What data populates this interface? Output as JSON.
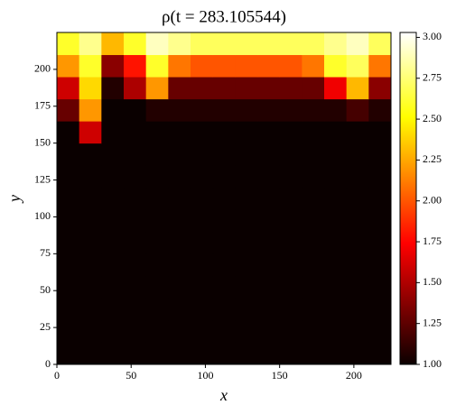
{
  "chart_data": {
    "type": "heatmap",
    "title": "ρ(t = 283.105544)",
    "x_label": "x",
    "y_label": "y",
    "colormap": "hot",
    "xlim": [
      0,
      225
    ],
    "ylim": [
      0,
      225
    ],
    "xticks": [
      0,
      50,
      100,
      150,
      200
    ],
    "yticks": [
      0,
      25,
      50,
      75,
      100,
      125,
      150,
      175,
      200
    ],
    "clim": [
      1.0,
      3.03
    ],
    "cticks": [
      {
        "value": 1.0,
        "label": "1.00"
      },
      {
        "value": 1.25,
        "label": "1.25"
      },
      {
        "value": 1.5,
        "label": "1.50"
      },
      {
        "value": 1.75,
        "label": "1.75"
      },
      {
        "value": 2.0,
        "label": "2.00"
      },
      {
        "value": 2.25,
        "label": "2.25"
      },
      {
        "value": 2.5,
        "label": "2.50"
      },
      {
        "value": 2.75,
        "label": "2.75"
      },
      {
        "value": 3.0,
        "label": "3.00"
      }
    ],
    "z": [
      [
        1,
        1,
        1,
        1,
        1,
        1,
        1,
        1,
        1,
        1,
        1,
        1,
        1,
        1,
        1
      ],
      [
        1,
        1,
        1,
        1,
        1,
        1,
        1,
        1,
        1,
        1,
        1,
        1,
        1,
        1,
        1
      ],
      [
        1,
        1,
        1,
        1,
        1,
        1,
        1,
        1,
        1,
        1,
        1,
        1,
        1,
        1,
        1
      ],
      [
        1,
        1,
        1,
        1,
        1,
        1,
        1,
        1,
        1,
        1,
        1,
        1,
        1,
        1,
        1
      ],
      [
        1,
        1,
        1,
        1,
        1,
        1,
        1,
        1,
        1,
        1,
        1,
        1,
        1,
        1,
        1
      ],
      [
        1,
        1,
        1,
        1,
        1,
        1,
        1,
        1,
        1,
        1,
        1,
        1,
        1,
        1,
        1
      ],
      [
        1,
        1,
        1,
        1,
        1,
        1,
        1,
        1,
        1,
        1,
        1,
        1,
        1,
        1,
        1
      ],
      [
        1,
        1,
        1,
        1,
        1,
        1,
        1,
        1,
        1,
        1,
        1,
        1,
        1,
        1,
        1
      ],
      [
        1,
        1,
        1,
        1,
        1,
        1,
        1,
        1,
        1,
        1,
        1,
        1,
        1,
        1,
        1
      ],
      [
        1,
        1,
        1,
        1,
        1,
        1,
        1,
        1,
        1,
        1,
        1,
        1,
        1,
        1,
        1
      ],
      [
        1.0,
        1.6,
        1.0,
        1,
        1,
        1,
        1,
        1,
        1,
        1,
        1,
        1,
        1,
        1,
        1
      ],
      [
        1.3,
        2.2,
        1.0,
        1.0,
        1.1,
        1.1,
        1.1,
        1.1,
        1.1,
        1.1,
        1.1,
        1.1,
        1.1,
        1.2,
        1.1
      ],
      [
        1.6,
        2.4,
        1.1,
        1.5,
        2.2,
        1.3,
        1.3,
        1.3,
        1.3,
        1.3,
        1.3,
        1.3,
        1.7,
        2.3,
        1.4
      ],
      [
        2.2,
        2.6,
        1.4,
        1.8,
        2.6,
        2.1,
        2.0,
        2.0,
        2.0,
        2.0,
        2.0,
        2.1,
        2.6,
        2.7,
        2.1
      ],
      [
        2.6,
        2.8,
        2.3,
        2.6,
        2.9,
        2.8,
        2.7,
        2.7,
        2.7,
        2.7,
        2.7,
        2.7,
        2.8,
        2.9,
        2.7
      ]
    ]
  }
}
